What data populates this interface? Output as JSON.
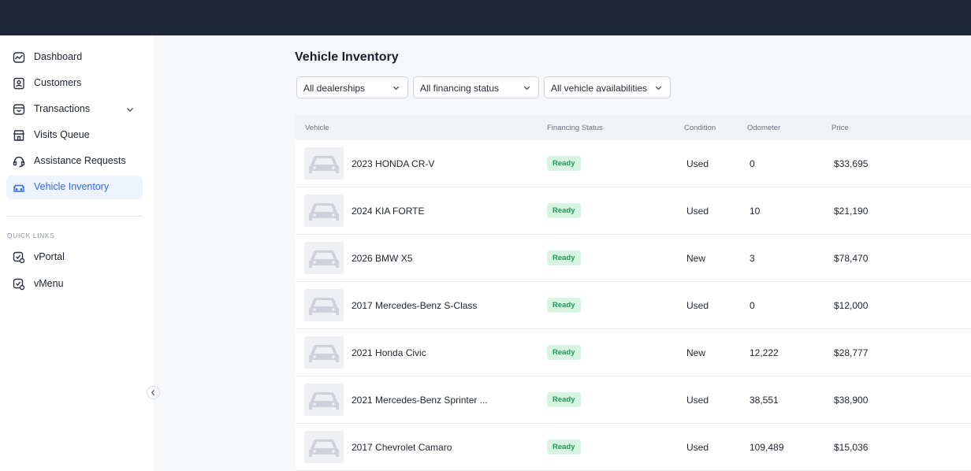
{
  "sidebar": {
    "items": [
      {
        "label": "Dashboard",
        "icon": "chart-line-icon"
      },
      {
        "label": "Customers",
        "icon": "contact-card-icon"
      },
      {
        "label": "Transactions",
        "icon": "inbox-icon"
      },
      {
        "label": "Visits Queue",
        "icon": "storefront-icon"
      },
      {
        "label": "Assistance Requests",
        "icon": "headset-icon"
      },
      {
        "label": "Vehicle Inventory",
        "icon": "car-icon",
        "active": true
      }
    ],
    "quick_links_title": "QUICK LINKS",
    "quick_links": [
      {
        "label": "vPortal",
        "icon": "portal-icon"
      },
      {
        "label": "vMenu",
        "icon": "menu-icon"
      }
    ]
  },
  "main": {
    "title": "Vehicle Inventory",
    "filters": {
      "dealerships": "All dealerships",
      "financing": "All financing status",
      "availability": "All vehicle availabilities"
    }
  },
  "table": {
    "columns": {
      "vehicle": "Vehicle",
      "financing_status": "Financing Status",
      "condition": "Condition",
      "odometer": "Odometer",
      "price": "Price"
    },
    "rows": [
      {
        "vehicle": "2023 HONDA CR-V",
        "status": "Ready",
        "condition": "Used",
        "odometer": "0",
        "price": "$33,695"
      },
      {
        "vehicle": "2024 KIA FORTE",
        "status": "Ready",
        "condition": "Used",
        "odometer": "10",
        "price": "$21,190"
      },
      {
        "vehicle": "2026 BMW X5",
        "status": "Ready",
        "condition": "New",
        "odometer": "3",
        "price": "$78,470"
      },
      {
        "vehicle": "2017 Mercedes-Benz S-Class",
        "status": "Ready",
        "condition": "Used",
        "odometer": "0",
        "price": "$12,000"
      },
      {
        "vehicle": "2021 Honda Civic",
        "status": "Ready",
        "condition": "New",
        "odometer": "12,222",
        "price": "$28,777"
      },
      {
        "vehicle": "2021 Mercedes-Benz Sprinter ...",
        "status": "Ready",
        "condition": "Used",
        "odometer": "38,551",
        "price": "$38,900"
      },
      {
        "vehicle": "2017 Chevrolet Camaro",
        "status": "Ready",
        "condition": "Used",
        "odometer": "109,489",
        "price": "$15,036"
      }
    ]
  },
  "colors": {
    "topbar": "#1e2639",
    "accent": "#2f6fe0",
    "active_bg": "#eef3fd",
    "ready_bg": "#d7f4e3",
    "ready_text": "#1f9a56"
  }
}
